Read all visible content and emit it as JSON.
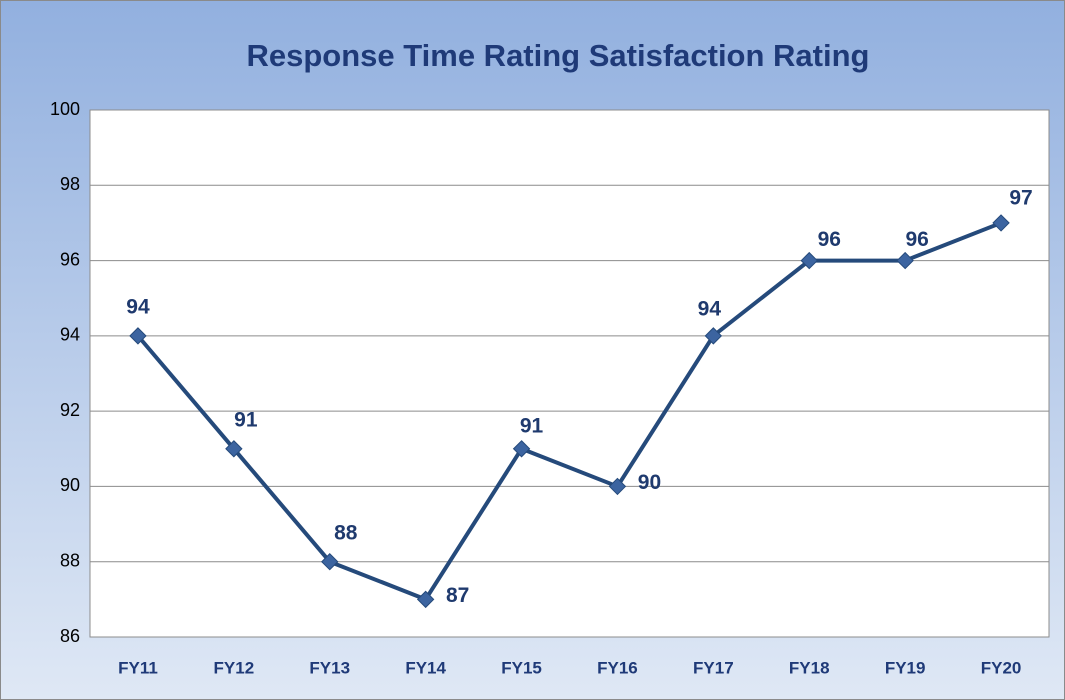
{
  "chart_data": {
    "type": "line",
    "title": "Response Time Rating Satisfaction Rating",
    "categories": [
      "FY11",
      "FY12",
      "FY13",
      "FY14",
      "FY15",
      "FY16",
      "FY17",
      "FY18",
      "FY19",
      "FY20"
    ],
    "series": [
      {
        "name": "Response Time Rating Satisfaction Rating",
        "color": "#254a7b",
        "marker_color": "#3c64a0",
        "values": [
          94,
          91,
          88,
          87,
          91,
          90,
          94,
          96,
          96,
          97
        ]
      }
    ],
    "ylim": [
      86,
      100
    ],
    "yticks": [
      86,
      88,
      90,
      92,
      94,
      96,
      98,
      100
    ],
    "grid": true
  }
}
